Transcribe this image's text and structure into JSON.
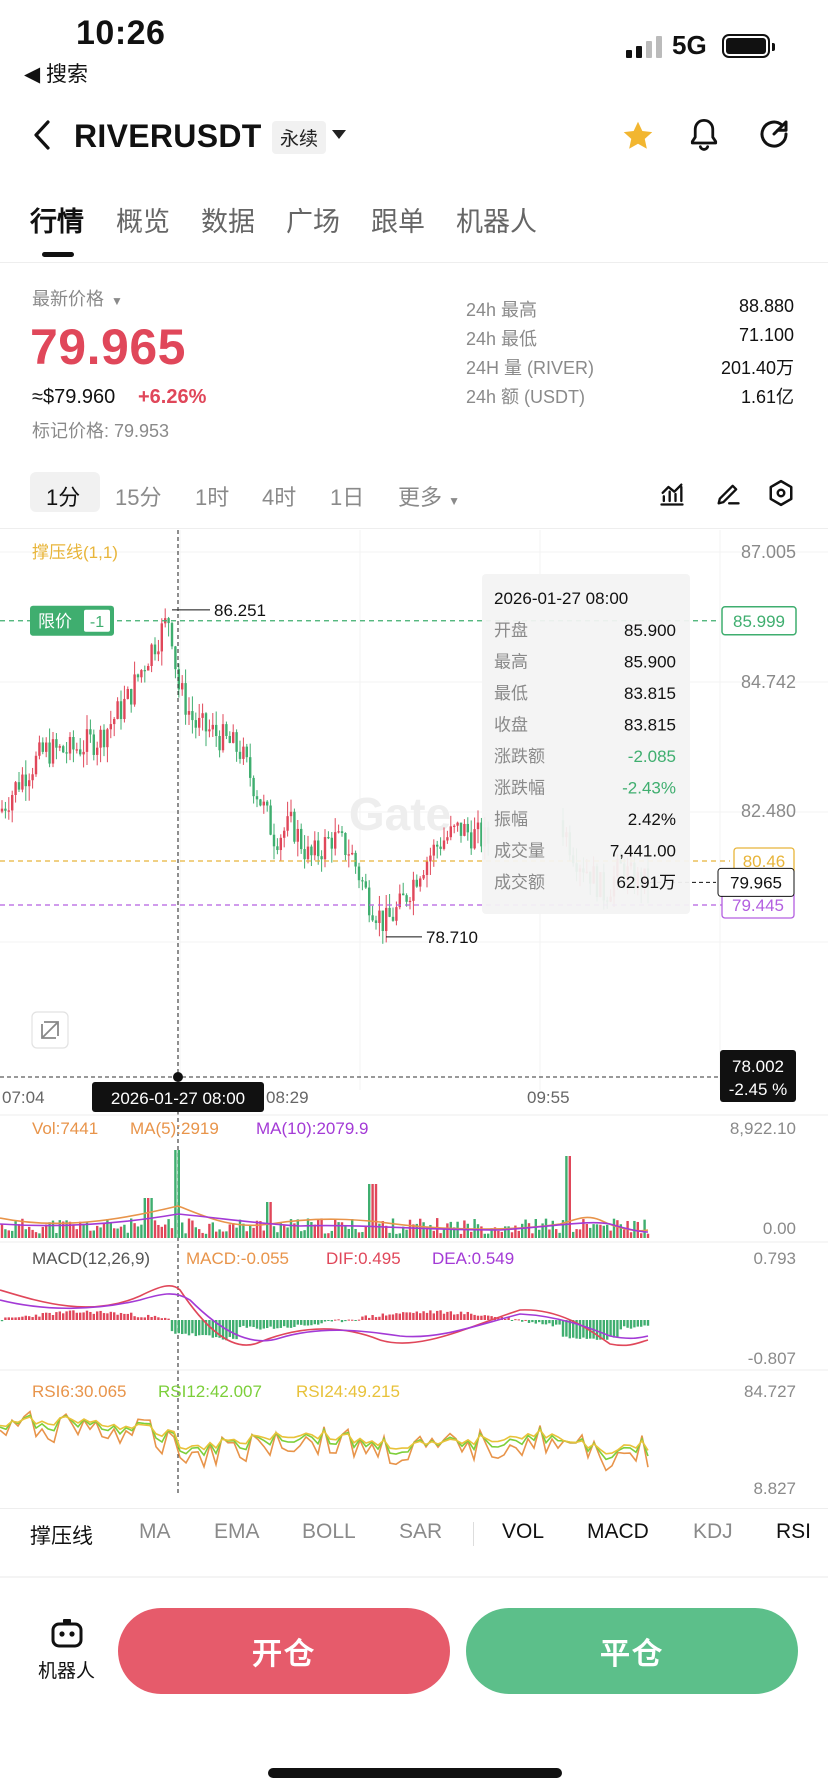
{
  "status_bar": {
    "time": "10:26",
    "back_label": "◀ 搜索",
    "network": "5G"
  },
  "header": {
    "title": "RIVERUSDT",
    "contract_type": "永续"
  },
  "tabs": [
    {
      "label": "行情",
      "active": true
    },
    {
      "label": "概览",
      "active": false
    },
    {
      "label": "数据",
      "active": false
    },
    {
      "label": "广场",
      "active": false
    },
    {
      "label": "跟单",
      "active": false
    },
    {
      "label": "机器人",
      "active": false
    }
  ],
  "price": {
    "label": "最新价格",
    "last": "79.965",
    "usd": "≈$79.960",
    "change": "+6.26%",
    "mark": "标记价格: 79.953",
    "color_up": "#e0475a",
    "color_down": "#3fae6f"
  },
  "stats_24h": [
    {
      "key": "24h  最高",
      "value": "88.880"
    },
    {
      "key": "24h  最低",
      "value": "71.100"
    },
    {
      "key": "24H  量 (RIVER)",
      "value": "201.40万"
    },
    {
      "key": "24h  额 (USDT)",
      "value": "1.61亿"
    }
  ],
  "intervals": {
    "items": [
      {
        "label": "1分",
        "active": true
      },
      {
        "label": "15分",
        "active": false
      },
      {
        "label": "1时",
        "active": false
      },
      {
        "label": "4时",
        "active": false
      },
      {
        "label": "1日",
        "active": false
      },
      {
        "label": "更多",
        "active": false
      }
    ],
    "icons": [
      "indicator-icon",
      "draw-pen-icon",
      "settings-hex-icon"
    ]
  },
  "chart_data": {
    "type": "candlestick",
    "symbol": "RIVERUSDT",
    "sr_label": "撑压线(1,1)",
    "limit_badge": {
      "label": "限价",
      "count": "-1",
      "price": "85.999"
    },
    "y_ticks": [
      "87.005",
      "84.742",
      "82.480"
    ],
    "y_range": [
      77.6,
      87.4
    ],
    "high_marker": "86.251",
    "low_marker": "78.710",
    "support_line": {
      "label": "80.46",
      "color": "#e8b53a",
      "value": 80.46
    },
    "resistance_line": {
      "label": "79.445",
      "color": "#b35fe0",
      "value": 79.445
    },
    "last_price_tag": "79.965",
    "cursor_price_tag": {
      "price": "78.002",
      "pct": "-2.45 %"
    },
    "x_ticks": [
      "07:04",
      "08:29",
      "09:55"
    ],
    "cursor_time": "2026-01-27 08:00",
    "watermark": "Gate",
    "tooltip": {
      "time": "2026-01-27 08:00",
      "rows": [
        {
          "k": "开盘",
          "v": "85.900",
          "tone": "plain"
        },
        {
          "k": "最高",
          "v": "85.900",
          "tone": "plain"
        },
        {
          "k": "最低",
          "v": "83.815",
          "tone": "plain"
        },
        {
          "k": "收盘",
          "v": "83.815",
          "tone": "plain"
        },
        {
          "k": "涨跌额",
          "v": "-2.085",
          "tone": "down"
        },
        {
          "k": "涨跌幅",
          "v": "-2.43%",
          "tone": "down"
        },
        {
          "k": "振幅",
          "v": "2.42%",
          "tone": "plain"
        },
        {
          "k": "成交量",
          "v": "7,441.00",
          "tone": "plain"
        },
        {
          "k": "成交额",
          "v": "62.91万",
          "tone": "plain"
        }
      ]
    },
    "volume": {
      "vol": "Vol:7441",
      "ma5": "MA(5):2919",
      "ma10": "MA(10):2079.9",
      "max": "8,922.10",
      "min": "0.00"
    },
    "macd": {
      "title": "MACD(12,26,9)",
      "macd": "MACD:-0.055",
      "dif": "DIF:0.495",
      "dea": "DEA:0.549",
      "max": "0.793",
      "min": "-0.807"
    },
    "rsi": {
      "rsi6": "RSI6:30.065",
      "rsi12": "RSI12:42.007",
      "rsi24": "RSI24:49.215",
      "max": "84.727",
      "min": "8.827"
    },
    "colors": {
      "up": "#e0475a",
      "down": "#3fae6f",
      "ma5": "#e8944a",
      "ma10": "#a33ad6",
      "rsi6": "#e8944a",
      "rsi12": "#7ccf3a",
      "rsi24": "#e8c23a"
    }
  },
  "indicators": [
    {
      "label": "撑压线",
      "on": true
    },
    {
      "label": "MA",
      "on": false
    },
    {
      "label": "EMA",
      "on": false
    },
    {
      "label": "BOLL",
      "on": false
    },
    {
      "label": "SAR",
      "on": false
    },
    {
      "label": "VOL",
      "on": true
    },
    {
      "label": "MACD",
      "on": true
    },
    {
      "label": "KDJ",
      "on": false
    },
    {
      "label": "RSI",
      "on": true
    }
  ],
  "bottom": {
    "robot_label": "机器人",
    "open_label": "开仓",
    "close_label": "平仓"
  }
}
